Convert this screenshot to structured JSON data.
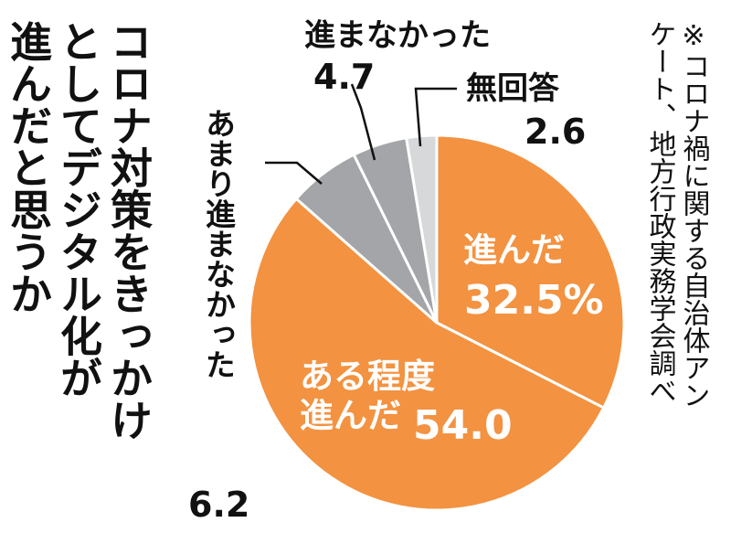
{
  "chart_data": {
    "type": "pie",
    "title_lines": [
      "コロナ対策をきっかけ",
      "としてデジタル化が",
      "進んだと思うか"
    ],
    "note_lines": [
      "※コロナ禍に関する自治体アン",
      "ケート、地方行政実務学会調べ"
    ],
    "slices": [
      {
        "label": "進んだ",
        "value": 32.5,
        "value_text": "32.5%",
        "color": "#f39240"
      },
      {
        "label": "ある程度進んだ",
        "label_lines": [
          "ある程度",
          "進んだ"
        ],
        "value": 54.0,
        "value_text": "54.0",
        "color": "#f39240"
      },
      {
        "label": "あまり進まなかった",
        "value": 6.2,
        "value_text": "6.2",
        "color": "#a3a5a8"
      },
      {
        "label": "進まなかった",
        "value": 4.7,
        "value_text": "4.7",
        "color": "#a3a5a8"
      },
      {
        "label": "無回答",
        "value": 2.6,
        "value_text": "2.6",
        "color": "#d6d8da"
      }
    ]
  }
}
